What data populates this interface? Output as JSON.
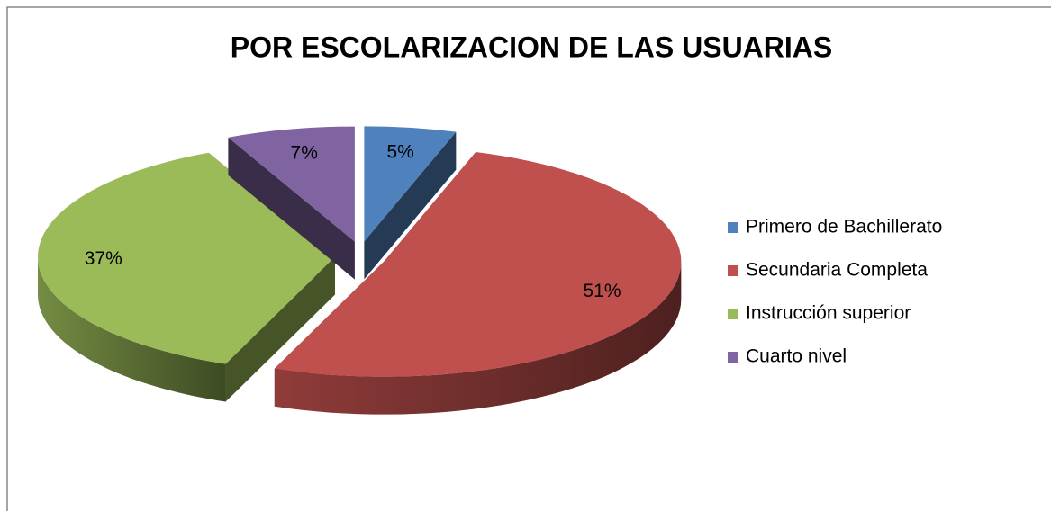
{
  "chart_data": {
    "type": "pie",
    "title": "POR ESCOLARIZACION DE LAS USUARIAS",
    "categories": [
      "Primero de Bachillerato",
      "Secundaria Completa",
      "Instrucción superior",
      "Cuarto nivel"
    ],
    "values": [
      5,
      51,
      37,
      7
    ],
    "value_labels": [
      "5%",
      "51%",
      "37%",
      "7%"
    ],
    "colors": [
      "#4f81bd",
      "#c0504d",
      "#9bbb59",
      "#8064a2"
    ],
    "legend": "right"
  }
}
